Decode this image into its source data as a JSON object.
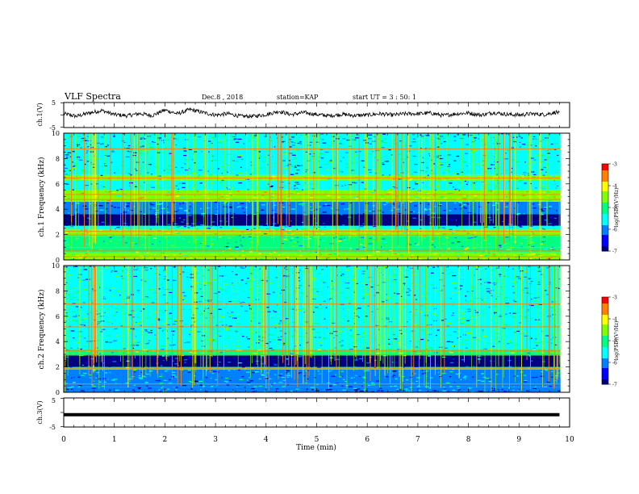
{
  "header": {
    "title": "VLF Spectra",
    "date": "Dec.8 , 2018",
    "station": "station=KAP",
    "start": "start UT = 3 : 50: 1"
  },
  "colors": {
    "colormap": [
      "#000080",
      "#0000ff",
      "#0080ff",
      "#00ffff",
      "#00ff80",
      "#80ff00",
      "#ffff00",
      "#ff8000",
      "#ff0000",
      "#ffffff"
    ],
    "background_spectrum": "#1e8ae6"
  },
  "chart_data": [
    {
      "type": "line",
      "name": "ch1-waveform",
      "ylabel": "ch.1(V)",
      "yticks": [
        "5",
        "-5"
      ],
      "ylim": [
        -5,
        5
      ],
      "xlim": [
        0,
        10
      ],
      "x": [
        0,
        0.25,
        0.5,
        0.75,
        1.0,
        1.25,
        1.5,
        1.75,
        2.0,
        2.25,
        2.5,
        2.75,
        3.0,
        3.25,
        3.5,
        3.75,
        4.0,
        4.25,
        4.5,
        4.75,
        5.0,
        5.25,
        5.5,
        5.75,
        6.0,
        6.25,
        6.5,
        6.75,
        7.0,
        7.25,
        7.5,
        7.75,
        8.0,
        8.25,
        8.5,
        8.75,
        9.0,
        9.25,
        9.5,
        9.75,
        9.8
      ],
      "y": [
        0.5,
        -0.5,
        0.8,
        1.8,
        0.2,
        -0.3,
        0.6,
        -0.2,
        2.0,
        0.5,
        2.2,
        1.0,
        0.0,
        0.5,
        -0.5,
        -0.5,
        0.2,
        1.5,
        0.2,
        1.0,
        0.2,
        -0.3,
        0.3,
        -0.2,
        0.0,
        0.5,
        0.0,
        0.5,
        0.5,
        0.8,
        -0.2,
        0.5,
        0.8,
        0.0,
        1.0,
        0.3,
        0.0,
        0.5,
        0.2,
        1.2,
        0.5
      ]
    },
    {
      "type": "heatmap",
      "name": "ch1-spectrogram",
      "ylabel": "ch.1 Frequency (kHz)",
      "yticks": [
        "0",
        "2",
        "4",
        "6",
        "8",
        "10"
      ],
      "ylim": [
        0,
        10
      ],
      "xlim": [
        0,
        10
      ],
      "colorbar": {
        "label": "log(PSD)(V²/Hz)",
        "ticks": [
          "-3",
          "-4",
          "-5",
          "-6",
          "-7"
        ],
        "range": [
          -7,
          -3
        ]
      },
      "bands": [
        {
          "f0": 0.0,
          "f1": 0.6,
          "level": -4.5
        },
        {
          "f0": 0.6,
          "f1": 1.0,
          "level": -4.8
        },
        {
          "f0": 1.0,
          "f1": 1.9,
          "level": -5.2
        },
        {
          "f0": 1.9,
          "f1": 2.4,
          "level": -4.3
        },
        {
          "f0": 2.4,
          "f1": 2.7,
          "level": -5.5
        },
        {
          "f0": 2.7,
          "f1": 3.6,
          "level": -6.8
        },
        {
          "f0": 3.6,
          "f1": 4.6,
          "level": -6.0
        },
        {
          "f0": 4.6,
          "f1": 5.5,
          "level": -4.4
        },
        {
          "f0": 5.5,
          "f1": 6.3,
          "level": -5.4
        },
        {
          "f0": 6.3,
          "f1": 6.7,
          "level": -4.7
        },
        {
          "f0": 6.7,
          "f1": 10.0,
          "level": -5.6
        }
      ]
    },
    {
      "type": "heatmap",
      "name": "ch2-spectrogram",
      "ylabel": "ch.2 Frequency (kHz)",
      "yticks": [
        "0",
        "2",
        "4",
        "6",
        "8",
        "10"
      ],
      "ylim": [
        0,
        10
      ],
      "xlim": [
        0,
        10
      ],
      "colorbar": {
        "label": "log(PSD)(V²/Hz)",
        "ticks": [
          "-3",
          "-4",
          "-5",
          "-6",
          "-7"
        ],
        "range": [
          -7,
          -3
        ]
      },
      "bands": [
        {
          "f0": 0.0,
          "f1": 0.4,
          "level": -6.2
        },
        {
          "f0": 0.4,
          "f1": 1.8,
          "level": -5.8
        },
        {
          "f0": 1.8,
          "f1": 2.0,
          "level": -4.8
        },
        {
          "f0": 2.0,
          "f1": 2.9,
          "level": -6.8
        },
        {
          "f0": 2.9,
          "f1": 3.4,
          "level": -5.0
        },
        {
          "f0": 3.4,
          "f1": 10.0,
          "level": -5.4
        }
      ]
    },
    {
      "type": "line",
      "name": "ch3-waveform",
      "ylabel": "ch.3(V)",
      "yticks": [
        "5",
        "-5"
      ],
      "ylim": [
        -5,
        5
      ],
      "xlim": [
        0,
        10
      ],
      "xlabel": "Time (min)",
      "xticks": [
        "0",
        "1",
        "2",
        "3",
        "4",
        "5",
        "6",
        "7",
        "8",
        "9",
        "10"
      ],
      "x": [
        0,
        9.8
      ],
      "y": [
        -0.2,
        -0.2
      ]
    }
  ]
}
